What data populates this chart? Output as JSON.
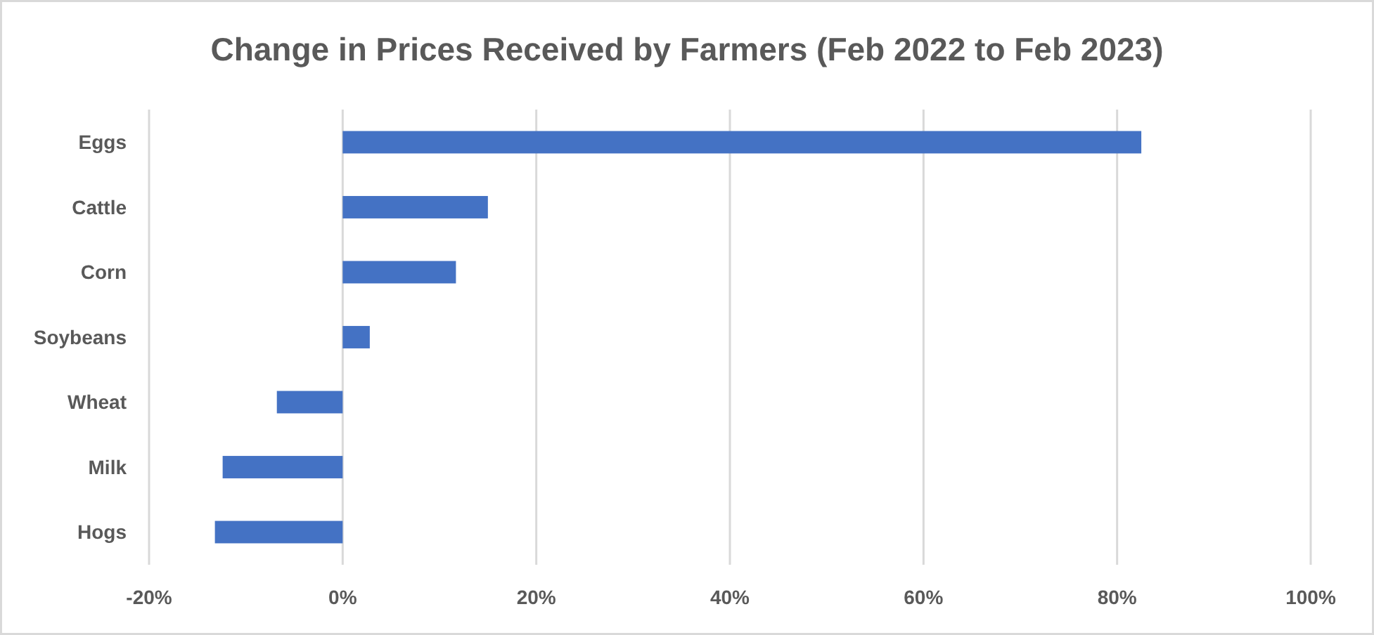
{
  "chart_data": {
    "type": "bar",
    "orientation": "horizontal",
    "title": "Change in Prices Received by Farmers (Feb 2022 to Feb 2023)",
    "categories": [
      "Eggs",
      "Cattle",
      "Corn",
      "Soybeans",
      "Wheat",
      "Milk",
      "Hogs"
    ],
    "values": [
      82.5,
      15.0,
      11.7,
      2.8,
      -6.8,
      -12.4,
      -13.2
    ],
    "color": "#4472c4",
    "xlim": [
      -20,
      100
    ],
    "xticks": [
      {
        "value": -20,
        "label": "-20%"
      },
      {
        "value": 0,
        "label": "0%"
      },
      {
        "value": 20,
        "label": "20%"
      },
      {
        "value": 40,
        "label": "40%"
      },
      {
        "value": 60,
        "label": "60%"
      },
      {
        "value": 80,
        "label": "80%"
      },
      {
        "value": 100,
        "label": "100%"
      }
    ],
    "grid": "x"
  }
}
